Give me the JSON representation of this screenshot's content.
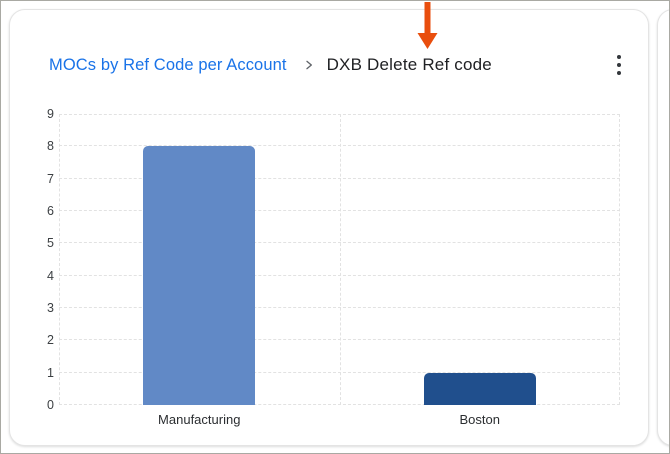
{
  "card": {
    "header": {
      "breadcrumb": {
        "label": "MOCs by Ref Code per Account",
        "color": "#1a73e8"
      },
      "separator_icon": "chevron-right",
      "title": "DXB Delete Ref code",
      "menu_icon": "kebab-menu"
    }
  },
  "annotation": {
    "type": "down-arrow",
    "color": "#e94e0d",
    "points_to": "DXB Delete Ref code"
  },
  "chart_data": {
    "type": "bar",
    "categories": [
      "Manufacturing",
      "Boston"
    ],
    "values": [
      8,
      1
    ],
    "bar_colors": [
      "#6189c6",
      "#204f8d"
    ],
    "title": "",
    "xlabel": "",
    "ylabel": "",
    "ylim": [
      0,
      9
    ],
    "yticks": [
      0,
      1,
      2,
      3,
      4,
      5,
      6,
      7,
      8,
      9
    ],
    "grid": "dashed",
    "legend_position": "none"
  },
  "colors": {
    "link": "#1a73e8",
    "title_text": "#202124",
    "axis_text": "#3c4043",
    "gridline": "#e2e2e2",
    "card_border": "#e4e4e4"
  }
}
